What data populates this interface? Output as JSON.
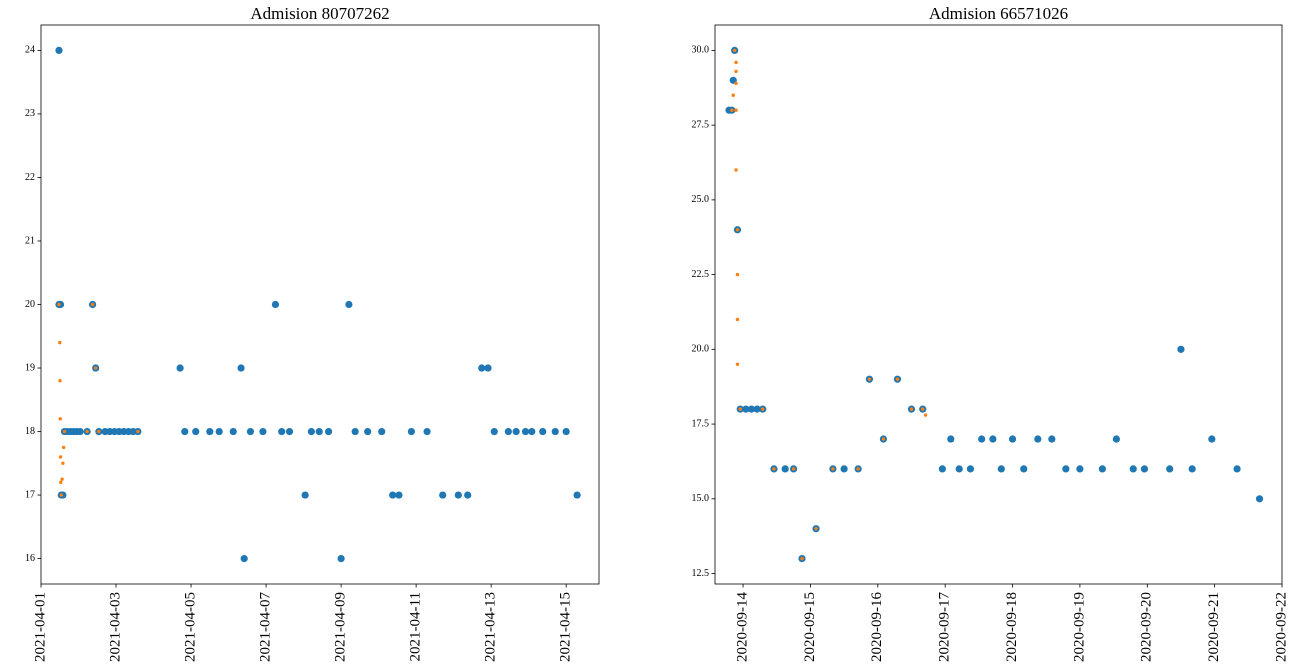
{
  "chart_data": [
    {
      "type": "scatter",
      "title": "Admision 80707262",
      "xlabel": "",
      "ylabel": "",
      "x_is_date": true,
      "xlim": [
        "2021-04-01T00:00",
        "2021-04-15T21:00"
      ],
      "ylim": [
        15.6,
        24.4
      ],
      "xticks": [
        "2021-04-01",
        "2021-04-03",
        "2021-04-05",
        "2021-04-07",
        "2021-04-09",
        "2021-04-11",
        "2021-04-13",
        "2021-04-15"
      ],
      "yticks": [
        16,
        17,
        18,
        19,
        20,
        21,
        22,
        23,
        24
      ],
      "grid": false,
      "series": [
        {
          "color": "#1f77b4",
          "marker": "circle",
          "points": [
            [
              "2021-04-01T11:30",
              24
            ],
            [
              "2021-04-01T11:30",
              20
            ],
            [
              "2021-04-01T12:30",
              20
            ],
            [
              "2021-04-01T13:00",
              17
            ],
            [
              "2021-04-01T14:00",
              17
            ],
            [
              "2021-04-01T15:00",
              18
            ],
            [
              "2021-04-01T17:00",
              18
            ],
            [
              "2021-04-01T19:00",
              18
            ],
            [
              "2021-04-01T21:00",
              18
            ],
            [
              "2021-04-01T23:00",
              18
            ],
            [
              "2021-04-02T01:00",
              18
            ],
            [
              "2021-04-02T05:30",
              18
            ],
            [
              "2021-04-02T09:00",
              20
            ],
            [
              "2021-04-02T11:00",
              19
            ],
            [
              "2021-04-02T13:00",
              18
            ],
            [
              "2021-04-02T17:00",
              18
            ],
            [
              "2021-04-02T20:00",
              18
            ],
            [
              "2021-04-02T23:00",
              18
            ],
            [
              "2021-04-03T02:00",
              18
            ],
            [
              "2021-04-03T05:00",
              18
            ],
            [
              "2021-04-03T08:00",
              18
            ],
            [
              "2021-04-03T11:00",
              18
            ],
            [
              "2021-04-03T14:00",
              18
            ],
            [
              "2021-04-04T17:00",
              19
            ],
            [
              "2021-04-04T20:00",
              18
            ],
            [
              "2021-04-05T03:00",
              18
            ],
            [
              "2021-04-05T12:00",
              18
            ],
            [
              "2021-04-05T18:00",
              18
            ],
            [
              "2021-04-06T03:00",
              18
            ],
            [
              "2021-04-06T08:00",
              19
            ],
            [
              "2021-04-06T10:00",
              16
            ],
            [
              "2021-04-06T14:00",
              18
            ],
            [
              "2021-04-06T22:00",
              18
            ],
            [
              "2021-04-07T06:00",
              20
            ],
            [
              "2021-04-07T10:00",
              18
            ],
            [
              "2021-04-07T15:00",
              18
            ],
            [
              "2021-04-08T01:00",
              17
            ],
            [
              "2021-04-08T05:00",
              18
            ],
            [
              "2021-04-08T10:00",
              18
            ],
            [
              "2021-04-08T16:00",
              18
            ],
            [
              "2021-04-09T00:00",
              16
            ],
            [
              "2021-04-09T05:00",
              20
            ],
            [
              "2021-04-09T09:00",
              18
            ],
            [
              "2021-04-09T17:00",
              18
            ],
            [
              "2021-04-10T02:00",
              18
            ],
            [
              "2021-04-10T09:00",
              17
            ],
            [
              "2021-04-10T13:00",
              17
            ],
            [
              "2021-04-10T21:00",
              18
            ],
            [
              "2021-04-11T07:00",
              18
            ],
            [
              "2021-04-11T17:00",
              17
            ],
            [
              "2021-04-12T03:00",
              17
            ],
            [
              "2021-04-12T09:00",
              17
            ],
            [
              "2021-04-12T18:00",
              19
            ],
            [
              "2021-04-12T22:00",
              19
            ],
            [
              "2021-04-13T02:00",
              18
            ],
            [
              "2021-04-13T11:00",
              18
            ],
            [
              "2021-04-13T16:00",
              18
            ],
            [
              "2021-04-13T22:00",
              18
            ],
            [
              "2021-04-14T02:00",
              18
            ],
            [
              "2021-04-14T09:00",
              18
            ],
            [
              "2021-04-14T17:00",
              18
            ],
            [
              "2021-04-15T00:00",
              18
            ],
            [
              "2021-04-15T07:00",
              17
            ]
          ]
        },
        {
          "color": "#ff7f0e",
          "marker": "small-dot",
          "points": [
            [
              "2021-04-01T11:30",
              20
            ],
            [
              "2021-04-01T12:00",
              19.4
            ],
            [
              "2021-04-01T12:10",
              18.8
            ],
            [
              "2021-04-01T12:20",
              18.2
            ],
            [
              "2021-04-01T12:30",
              17.6
            ],
            [
              "2021-04-01T12:40",
              17.2
            ],
            [
              "2021-04-01T13:00",
              17
            ],
            [
              "2021-04-01T13:30",
              17.25
            ],
            [
              "2021-04-01T14:00",
              17.5
            ],
            [
              "2021-04-01T14:30",
              17.75
            ],
            [
              "2021-04-01T15:00",
              18
            ],
            [
              "2021-04-02T05:30",
              18
            ],
            [
              "2021-04-02T09:00",
              20
            ],
            [
              "2021-04-02T11:00",
              19
            ],
            [
              "2021-04-02T13:00",
              18
            ],
            [
              "2021-04-03T14:00",
              18
            ]
          ]
        }
      ]
    },
    {
      "type": "scatter",
      "title": "Admision 66571026",
      "xlabel": "",
      "ylabel": "",
      "x_is_date": true,
      "xlim": [
        "2020-09-13T14:00",
        "2020-09-22T00:00"
      ],
      "ylim": [
        12.15,
        30.85
      ],
      "xticks": [
        "2020-09-14",
        "2020-09-15",
        "2020-09-16",
        "2020-09-17",
        "2020-09-18",
        "2020-09-19",
        "2020-09-20",
        "2020-09-21",
        "2020-09-22"
      ],
      "yticks": [
        12.5,
        15.0,
        17.5,
        20.0,
        22.5,
        25.0,
        27.5,
        30.0
      ],
      "grid": false,
      "series": [
        {
          "color": "#1f77b4",
          "marker": "circle",
          "points": [
            [
              "2020-09-13T19:00",
              28
            ],
            [
              "2020-09-13T20:00",
              28
            ],
            [
              "2020-09-13T20:30",
              29
            ],
            [
              "2020-09-13T21:00",
              30
            ],
            [
              "2020-09-13T22:00",
              24
            ],
            [
              "2020-09-13T23:00",
              18
            ],
            [
              "2020-09-14T01:00",
              18
            ],
            [
              "2020-09-14T03:00",
              18
            ],
            [
              "2020-09-14T05:00",
              18
            ],
            [
              "2020-09-14T07:00",
              18
            ],
            [
              "2020-09-14T11:00",
              16
            ],
            [
              "2020-09-14T15:00",
              16
            ],
            [
              "2020-09-14T18:00",
              16
            ],
            [
              "2020-09-14T21:00",
              13
            ],
            [
              "2020-09-15T02:00",
              14
            ],
            [
              "2020-09-15T08:00",
              16
            ],
            [
              "2020-09-15T12:00",
              16
            ],
            [
              "2020-09-15T17:00",
              16
            ],
            [
              "2020-09-15T21:00",
              19
            ],
            [
              "2020-09-16T02:00",
              17
            ],
            [
              "2020-09-16T07:00",
              19
            ],
            [
              "2020-09-16T12:00",
              18
            ],
            [
              "2020-09-16T16:00",
              18
            ],
            [
              "2020-09-16T23:00",
              16
            ],
            [
              "2020-09-17T02:00",
              17
            ],
            [
              "2020-09-17T05:00",
              16
            ],
            [
              "2020-09-17T09:00",
              16
            ],
            [
              "2020-09-17T13:00",
              17
            ],
            [
              "2020-09-17T17:00",
              17
            ],
            [
              "2020-09-17T20:00",
              16
            ],
            [
              "2020-09-18T00:00",
              17
            ],
            [
              "2020-09-18T04:00",
              16
            ],
            [
              "2020-09-18T09:00",
              17
            ],
            [
              "2020-09-18T14:00",
              17
            ],
            [
              "2020-09-18T19:00",
              16
            ],
            [
              "2020-09-19T00:00",
              16
            ],
            [
              "2020-09-19T08:00",
              16
            ],
            [
              "2020-09-19T13:00",
              17
            ],
            [
              "2020-09-19T19:00",
              16
            ],
            [
              "2020-09-19T23:00",
              16
            ],
            [
              "2020-09-20T08:00",
              16
            ],
            [
              "2020-09-20T12:00",
              20
            ],
            [
              "2020-09-20T16:00",
              16
            ],
            [
              "2020-09-20T23:00",
              17
            ],
            [
              "2020-09-21T08:00",
              16
            ],
            [
              "2020-09-21T16:00",
              15
            ]
          ]
        },
        {
          "color": "#ff7f0e",
          "marker": "small-dot",
          "points": [
            [
              "2020-09-13T20:00",
              28
            ],
            [
              "2020-09-13T20:30",
              28.5
            ],
            [
              "2020-09-13T21:00",
              30
            ],
            [
              "2020-09-13T21:30",
              29.6
            ],
            [
              "2020-09-13T21:30",
              29.3
            ],
            [
              "2020-09-13T21:30",
              28.9
            ],
            [
              "2020-09-13T21:30",
              28
            ],
            [
              "2020-09-13T21:30",
              26
            ],
            [
              "2020-09-13T22:00",
              24
            ],
            [
              "2020-09-13T22:00",
              22.5
            ],
            [
              "2020-09-13T22:00",
              21
            ],
            [
              "2020-09-13T22:00",
              19.5
            ],
            [
              "2020-09-13T23:00",
              18
            ],
            [
              "2020-09-14T07:00",
              18
            ],
            [
              "2020-09-14T11:00",
              16
            ],
            [
              "2020-09-14T18:00",
              16
            ],
            [
              "2020-09-14T21:00",
              13
            ],
            [
              "2020-09-15T02:00",
              14
            ],
            [
              "2020-09-15T08:00",
              16
            ],
            [
              "2020-09-15T17:00",
              16
            ],
            [
              "2020-09-15T21:00",
              19
            ],
            [
              "2020-09-16T02:00",
              17
            ],
            [
              "2020-09-16T07:00",
              19
            ],
            [
              "2020-09-16T12:00",
              18
            ],
            [
              "2020-09-16T16:00",
              18
            ],
            [
              "2020-09-16T17:00",
              17.8
            ]
          ]
        }
      ]
    }
  ]
}
